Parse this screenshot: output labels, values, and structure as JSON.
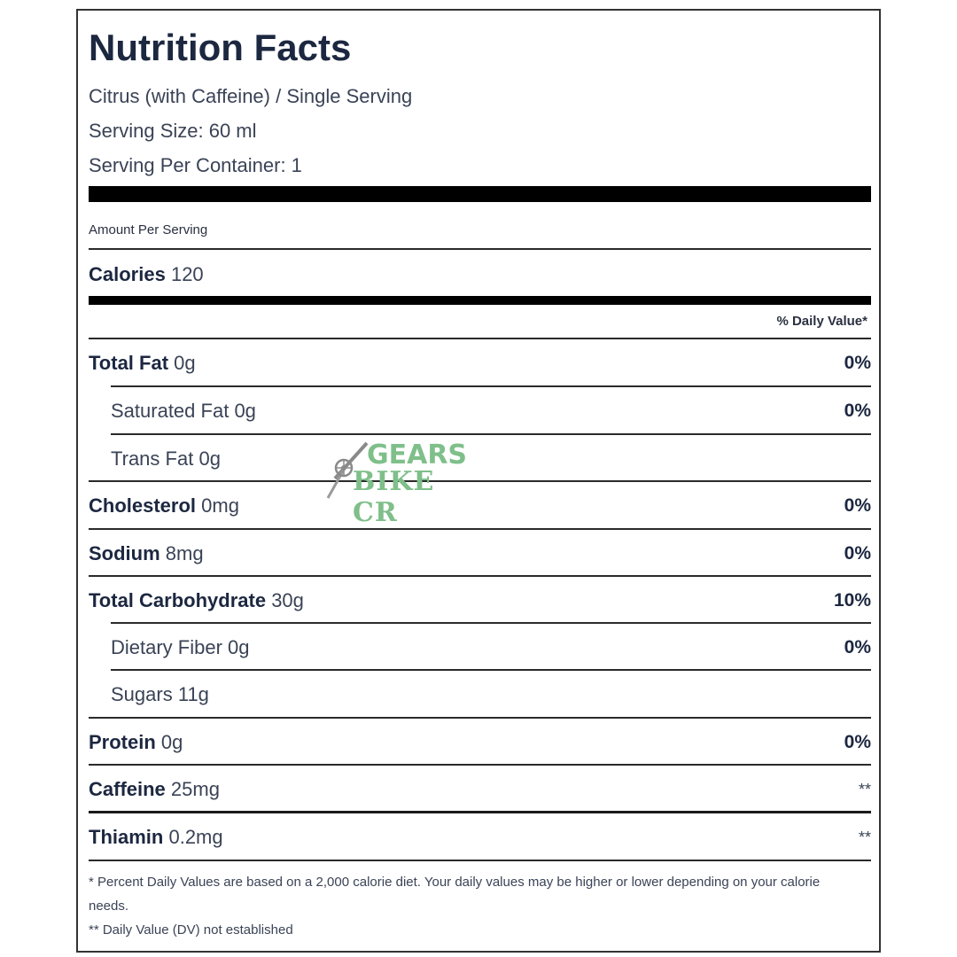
{
  "title": "Nutrition Facts",
  "product": "Citrus (with Caffeine) / Single Serving",
  "serving_size": "Serving Size: 60 ml",
  "servings_per_container": "Serving Per Container: 1",
  "amount_per_serving": "Amount Per Serving",
  "calories": {
    "label": "Calories",
    "value": "120"
  },
  "daily_value_header": "% Daily Value*",
  "nutrients": [
    {
      "name": "Total Fat",
      "amount": "0g",
      "dv": "0%"
    },
    {
      "name": "Saturated Fat",
      "amount": "0g",
      "dv": "0%"
    },
    {
      "name": "Trans Fat",
      "amount": "0g",
      "dv": ""
    },
    {
      "name": "Cholesterol",
      "amount": "0mg",
      "dv": "0%"
    },
    {
      "name": "Sodium",
      "amount": "8mg",
      "dv": "0%"
    },
    {
      "name": "Total Carbohydrate",
      "amount": "30g",
      "dv": "10%"
    },
    {
      "name": "Dietary Fiber",
      "amount": "0g",
      "dv": "0%"
    },
    {
      "name": "Sugars",
      "amount": "11g",
      "dv": ""
    },
    {
      "name": "Protein",
      "amount": "0g",
      "dv": "0%"
    },
    {
      "name": "Caffeine",
      "amount": "25mg",
      "dv": "**"
    },
    {
      "name": "Thiamin",
      "amount": "0.2mg",
      "dv": "**"
    }
  ],
  "footnote_1": "* Percent Daily Values are based on a 2,000 calorie diet. Your daily values may be higher or lower depending on your calorie needs.",
  "footnote_2": "** Daily Value (DV) not established",
  "watermark": {
    "line1": "GEARS",
    "line2": "BIKE CR",
    "color": "#7fbf8a"
  }
}
